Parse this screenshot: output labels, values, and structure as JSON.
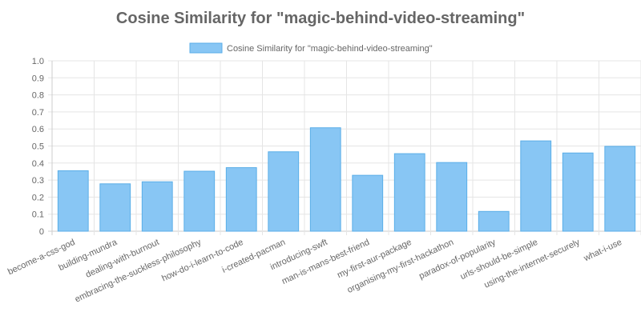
{
  "chart_data": {
    "type": "bar",
    "title": "Cosine Similarity for \"magic-behind-video-streaming\"",
    "xlabel": "",
    "ylabel": "",
    "ylim": [
      0,
      1.0
    ],
    "yticks": [
      "0",
      "0.1",
      "0.2",
      "0.3",
      "0.4",
      "0.5",
      "0.6",
      "0.7",
      "0.8",
      "0.9",
      "1.0"
    ],
    "grid": true,
    "legend_position": "top-center",
    "categories": [
      "become-a-css-god",
      "building-mundra",
      "dealing-with-burnout",
      "embracing-the-suckless-philosophy",
      "how-do-i-learn-to-code",
      "i-created-pacman",
      "introducing-swft",
      "man-is-mans-best-friend",
      "my-first-aur-package",
      "organising-my-first-hackathon",
      "paradox-of-popularity",
      "urls-should-be-simple",
      "using-the-internet-securely",
      "what-i-use"
    ],
    "series": [
      {
        "name": "Cosine Similarity for \"magic-behind-video-streaming\"",
        "color": "#88c6f4",
        "border_color": "#5aaee8",
        "values": [
          0.355,
          0.278,
          0.29,
          0.352,
          0.373,
          0.466,
          0.607,
          0.328,
          0.455,
          0.403,
          0.116,
          0.53,
          0.459,
          0.498
        ]
      }
    ]
  }
}
